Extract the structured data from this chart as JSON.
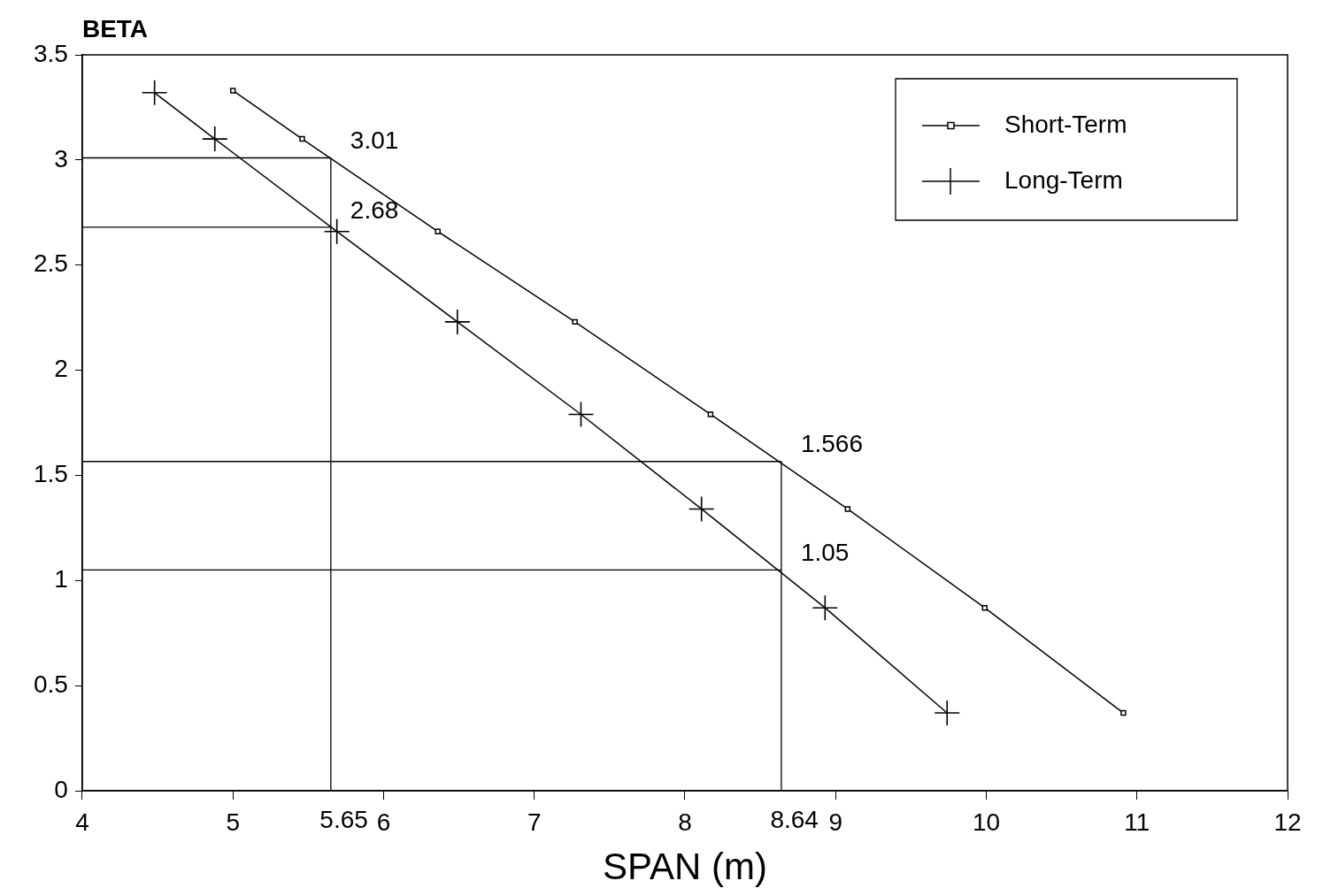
{
  "chart_data": {
    "type": "line",
    "ylabel": "BETA",
    "xlabel": "SPAN (m)",
    "xlim": [
      4,
      12
    ],
    "xticks": [
      4,
      5,
      6,
      7,
      8,
      9,
      10,
      11,
      12
    ],
    "ylim": [
      0,
      3.5
    ],
    "yticks": [
      0,
      0.5,
      1,
      1.5,
      2,
      2.5,
      3,
      3.5
    ],
    "grid": false,
    "legend": "top right",
    "series": [
      {
        "name": "Short-Term",
        "color": "#000000",
        "marker": "square",
        "x": [
          5.0,
          5.46,
          6.36,
          7.27,
          8.17,
          9.08,
          9.99,
          10.91
        ],
        "values": [
          3.33,
          3.1,
          2.66,
          2.23,
          1.79,
          1.34,
          0.87,
          0.37
        ]
      },
      {
        "name": "Long-Term",
        "color": "#000000",
        "marker": "cross",
        "x": [
          4.48,
          4.88,
          5.69,
          6.49,
          7.31,
          8.11,
          8.93,
          9.74
        ],
        "values": [
          3.32,
          3.1,
          2.66,
          2.23,
          1.79,
          1.34,
          0.87,
          0.37
        ]
      }
    ],
    "ref_lines": [
      {
        "axis": "x",
        "value": 5.65,
        "label": "5.65"
      },
      {
        "axis": "x",
        "value": 8.64,
        "label": "8.64"
      },
      {
        "axis": "y",
        "value": 3.01,
        "label": "3.01"
      },
      {
        "axis": "y",
        "value": 2.68,
        "label": "2.68"
      },
      {
        "axis": "y",
        "value": 1.566,
        "label": "1.566"
      },
      {
        "axis": "y",
        "value": 1.05,
        "label": "1.05"
      }
    ]
  }
}
